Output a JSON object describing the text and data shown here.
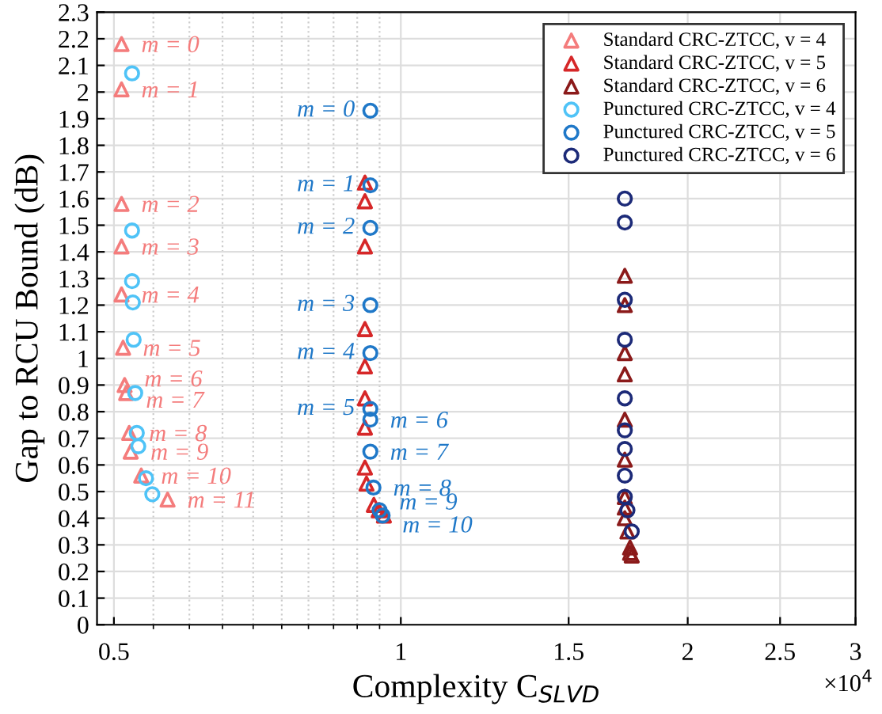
{
  "chart_data": {
    "type": "scatter",
    "xlabel": "Complexity C$_{SLVD}$",
    "ylabel": "Gap to RCU Bound (dB)",
    "log": "x",
    "grid": true,
    "legend": "top right",
    "xlim": [
      0.48,
      3
    ],
    "xticks": [
      0.5,
      1,
      1.5,
      2,
      2.5,
      3
    ],
    "ylim": [
      0,
      2.3
    ],
    "yticks": [
      0,
      0.1,
      0.2,
      0.3,
      0.4,
      0.5,
      0.6,
      0.7,
      0.8,
      0.9,
      1,
      1.1,
      1.2,
      1.3,
      1.4,
      1.5,
      1.6,
      1.7,
      1.8,
      1.9,
      2,
      2.1,
      2.2,
      2.3
    ],
    "series": [
      {
        "name": "Standard CRC-ZTCC, v = 4",
        "color": "#f47c7c",
        "marker": "triangle",
        "x": [
          0.5093,
          0.5093,
          0.5093,
          0.5093,
          0.5093,
          0.5112,
          0.5131,
          0.515,
          0.5188,
          0.5207,
          0.5341,
          0.5692
        ],
        "values": [
          2.18,
          2.01,
          1.58,
          1.42,
          1.24,
          1.04,
          0.9,
          0.87,
          0.72,
          0.65,
          0.56,
          0.47
        ]
      },
      {
        "name": "Standard CRC-ZTCC, v = 5",
        "color": "#d62728",
        "marker": "triangle",
        "x": [
          0.917,
          0.917,
          0.917,
          0.917,
          0.917,
          0.917,
          0.917,
          0.917,
          0.9204,
          0.9369,
          0.948,
          0.96
        ],
        "values": [
          1.66,
          1.59,
          1.42,
          1.11,
          0.97,
          0.85,
          0.74,
          0.59,
          0.53,
          0.45,
          0.43,
          0.41
        ]
      },
      {
        "name": "Standard CRC-ZTCC, v = 6",
        "color": "#8b1a1a",
        "marker": "triangle",
        "x": [
          1.718,
          1.718,
          1.718,
          1.718,
          1.718,
          1.718,
          1.718,
          1.718,
          1.718,
          1.729,
          1.74,
          1.74,
          1.747
        ],
        "values": [
          1.31,
          1.2,
          1.02,
          0.94,
          0.77,
          0.62,
          0.48,
          0.44,
          0.4,
          0.35,
          0.29,
          0.27,
          0.26
        ]
      },
      {
        "name": "Punctured CRC-ZTCC, v = 4",
        "color": "#4fc3f7",
        "marker": "circle",
        "x": [
          0.5224,
          0.5224,
          0.5224,
          0.5234,
          0.5244,
          0.5264,
          0.5284,
          0.5303,
          0.5403,
          0.5486
        ],
        "values": [
          2.07,
          1.48,
          1.29,
          1.21,
          1.07,
          0.87,
          0.72,
          0.67,
          0.55,
          0.49
        ]
      },
      {
        "name": "Punctured CRC-ZTCC, v = 5",
        "color": "#1f78c8",
        "marker": "circle",
        "x": [
          0.929,
          0.929,
          0.929,
          0.929,
          0.929,
          0.929,
          0.929,
          0.929,
          0.936,
          0.95,
          0.957
        ],
        "values": [
          1.93,
          1.65,
          1.49,
          1.2,
          1.02,
          0.81,
          0.77,
          0.65,
          0.515,
          0.43,
          0.41
        ]
      },
      {
        "name": "Punctured CRC-ZTCC, v = 6",
        "color": "#1c2a78",
        "marker": "circle",
        "x": [
          1.718,
          1.718,
          1.718,
          1.718,
          1.718,
          1.718,
          1.718,
          1.718,
          1.718,
          1.729,
          1.747
        ],
        "values": [
          1.6,
          1.51,
          1.22,
          1.07,
          0.85,
          0.73,
          0.66,
          0.56,
          0.48,
          0.43,
          0.35
        ]
      }
    ],
    "annotations": [
      {
        "text": "m = 0",
        "x": 0.5093,
        "y": 2.18
      },
      {
        "text": "m = 1",
        "x": 0.5093,
        "y": 2.01
      },
      {
        "text": "m = 2",
        "x": 0.5093,
        "y": 1.58
      },
      {
        "text": "m = 3",
        "x": 0.5093,
        "y": 1.42
      },
      {
        "text": "m = 4",
        "x": 0.5093,
        "y": 1.24
      },
      {
        "text": "m = 5",
        "x": 0.5112,
        "y": 1.04
      },
      {
        "text": "m = 6",
        "x": 0.5131,
        "y": 0.9
      },
      {
        "text": "m = 7",
        "x": 0.515,
        "y": 0.87
      },
      {
        "text": "m = 8",
        "x": 0.5188,
        "y": 0.72
      },
      {
        "text": "m = 9",
        "x": 0.5207,
        "y": 0.65
      },
      {
        "text": "m = 10",
        "x": 0.5341,
        "y": 0.56
      },
      {
        "text": "m = 11",
        "x": 0.5692,
        "y": 0.47
      },
      {
        "text": "m = 0",
        "x": 0.929,
        "y": 1.93
      },
      {
        "text": "m = 1",
        "x": 0.929,
        "y": 1.65
      },
      {
        "text": "m = 2",
        "x": 0.929,
        "y": 1.49
      },
      {
        "text": "m = 3",
        "x": 0.929,
        "y": 1.2
      },
      {
        "text": "m = 4",
        "x": 0.929,
        "y": 1.02
      },
      {
        "text": "m = 5",
        "x": 0.929,
        "y": 0.81
      },
      {
        "text": "m = 6",
        "x": 0.929,
        "y": 0.77
      },
      {
        "text": "m = 7",
        "x": 0.929,
        "y": 0.65
      },
      {
        "text": "m = 8",
        "x": 0.936,
        "y": 0.515
      },
      {
        "text": "m = 9",
        "x": 0.95,
        "y": 0.43
      },
      {
        "text": "m = 10",
        "x": 0.957,
        "y": 0.41
      },
      "×10$^{4}$"
    ]
  }
}
